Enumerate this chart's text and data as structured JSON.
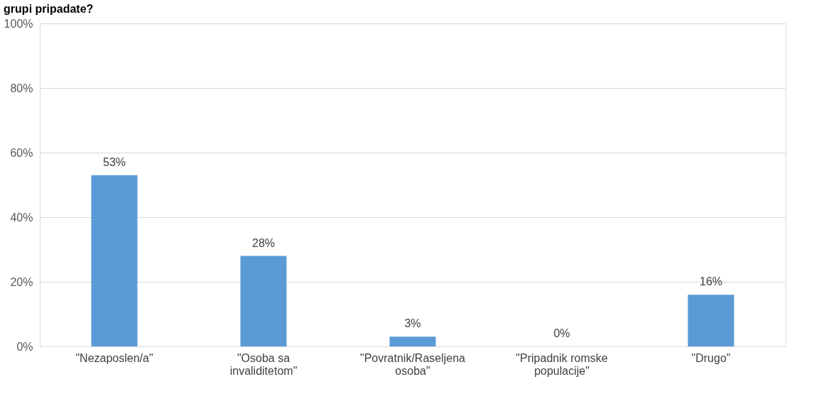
{
  "chart_data": {
    "type": "bar",
    "title": "grupi pripadate?",
    "categories": [
      "\"Nezaposlen/a\"",
      "\"Osoba sa invaliditetom\"",
      "\"Povratnik/Raseljena osoba\"",
      "\"Pripadnik romske populacije\"",
      "\"Drugo\""
    ],
    "values": [
      53,
      28,
      3,
      0,
      16
    ],
    "value_labels": [
      "53%",
      "28%",
      "3%",
      "0%",
      "16%"
    ],
    "color": "#5b9bd5",
    "ylim": [
      0,
      100
    ],
    "yticks": [
      {
        "value": 0,
        "label": "0%"
      },
      {
        "value": 20,
        "label": "20%"
      },
      {
        "value": 40,
        "label": "40%"
      },
      {
        "value": 60,
        "label": "60%"
      },
      {
        "value": 80,
        "label": "80%"
      },
      {
        "value": 100,
        "label": "100%"
      }
    ],
    "grid": "y"
  }
}
